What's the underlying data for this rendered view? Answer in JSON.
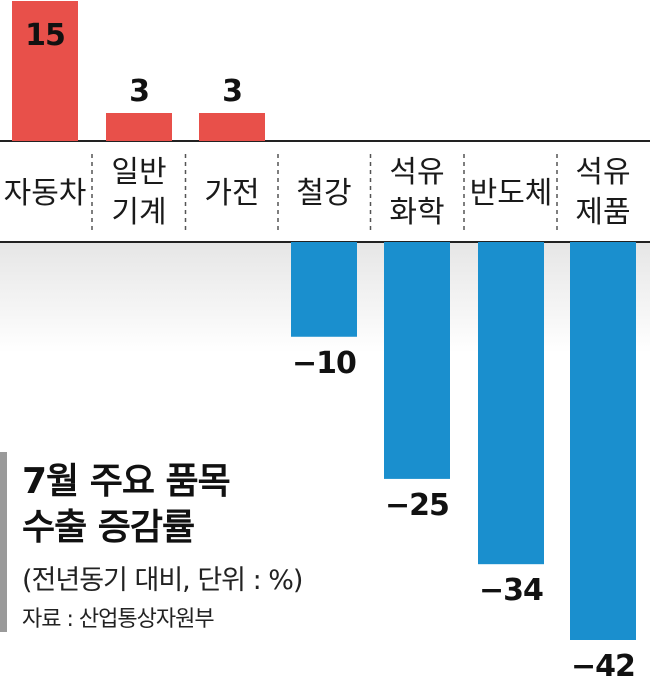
{
  "chart_data": {
    "type": "bar",
    "title_lines": [
      "7월 주요 품목",
      "수출 증감률"
    ],
    "subtitle": "(전년동기 대비, 단위 : %)",
    "source": "자료 : 산업통상자원부",
    "categories": [
      [
        "자동차"
      ],
      [
        "일반",
        "기계"
      ],
      [
        "가전"
      ],
      [
        "철강"
      ],
      [
        "석유",
        "화학"
      ],
      [
        "반도체"
      ],
      [
        "석유",
        "제품"
      ]
    ],
    "values": [
      15,
      3,
      3,
      -10,
      -25,
      -34,
      -42
    ],
    "value_labels": [
      "15",
      "3",
      "3",
      "−10",
      "−25",
      "−34",
      "−42"
    ],
    "colors": {
      "positive": "#e8504a",
      "negative": "#1a8fce"
    }
  }
}
